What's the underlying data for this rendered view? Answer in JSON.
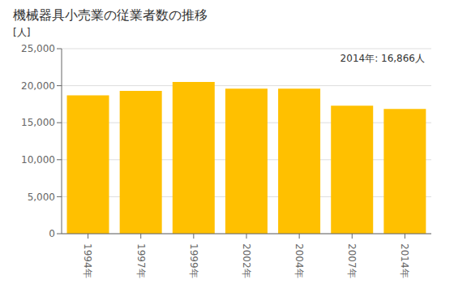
{
  "chart_data": {
    "type": "bar",
    "title": "機械器具小売業の従業者数の推移",
    "ylabel": "[人]",
    "annotation": "2014年: 16,866人",
    "categories": [
      "1994年",
      "1997年",
      "1999年",
      "2002年",
      "2004年",
      "2007年",
      "2014年"
    ],
    "values": [
      18700,
      19300,
      20500,
      19600,
      19600,
      17300,
      16866
    ],
    "color": "#FFC000",
    "ylim": [
      0,
      25000
    ],
    "yticks": [
      0,
      {
        "value": 5000,
        "label": "5,000"
      },
      {
        "value": 10000,
        "label": "10,000"
      },
      {
        "value": 15000,
        "label": "15,000"
      },
      {
        "value": 20000,
        "label": "20,000"
      },
      {
        "value": 25000,
        "label": "25,000"
      }
    ],
    "grid": true
  }
}
